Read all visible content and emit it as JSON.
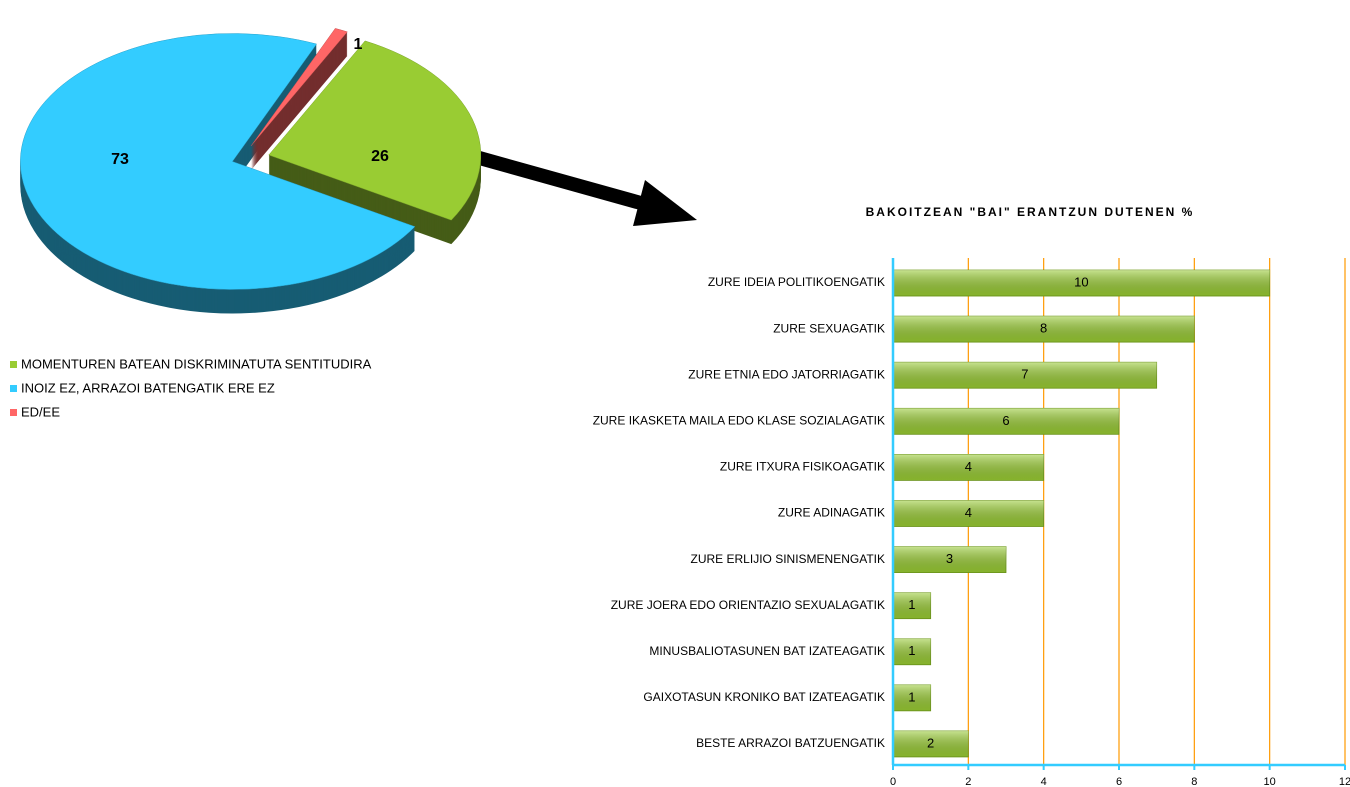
{
  "chart_data": [
    {
      "type": "pie",
      "categories": [
        "MOMENTUREN BATEAN DISKRIMINATUTA SENTITUDIRA",
        "INOIZ EZ, ARRAZOI BATENGATIK ERE EZ",
        "ED/EE"
      ],
      "values": [
        26,
        73,
        1
      ],
      "colors": [
        "#99cc33",
        "#33ccff",
        "#ff6666"
      ]
    },
    {
      "type": "bar",
      "title": "BAKOITZEAN \"BAI\" ERANTZUN DUTENEN %",
      "categories": [
        "ZURE IDEIA POLITIKOENGATIK",
        "ZURE SEXUAGATIK",
        "ZURE ETNIA EDO JATORRIAGATIK",
        "ZURE IKASKETA MAILA EDO KLASE SOZIALAGATIK",
        "ZURE ITXURA FISIKOAGATIK",
        "ZURE ADINAGATIK",
        "ZURE ERLIJIO SINISMENENGATIK",
        "ZURE JOERA EDO ORIENTAZIO SEXUALAGATIK",
        "MINUSBALIOTASUNEN BAT IZATEAGATIK",
        "GAIXOTASUN KRONIKO BAT IZATEAGATIK",
        "BESTE ARRAZOI BATZUENGATIK"
      ],
      "values": [
        10,
        8,
        7,
        6,
        4,
        4,
        3,
        1,
        1,
        1,
        2
      ],
      "color": "#99cc33",
      "xlim": [
        0,
        12
      ],
      "xticks": [
        0,
        2,
        4,
        6,
        8,
        10,
        12
      ],
      "grid": true
    }
  ]
}
